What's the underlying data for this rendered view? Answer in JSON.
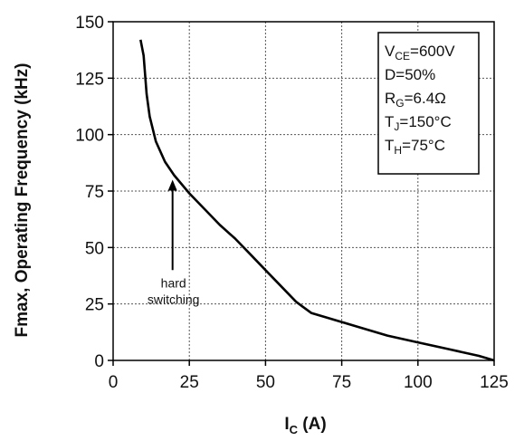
{
  "chart_data": {
    "type": "line",
    "xlabel": {
      "main": "I",
      "sub": "C",
      "rest": " (A)"
    },
    "ylabel": "Fmax, Operating Frequency (kHz)",
    "xlim": [
      0,
      125
    ],
    "ylim": [
      0,
      150
    ],
    "x_ticks": [
      "0",
      "25",
      "50",
      "75",
      "100",
      "125"
    ],
    "y_ticks": [
      "0",
      "25",
      "50",
      "75",
      "100",
      "125",
      "150"
    ],
    "grid": true,
    "series": [
      {
        "x": [
          9,
          10,
          11,
          12,
          14,
          17,
          20,
          25,
          30,
          35,
          40,
          45,
          50,
          55,
          60,
          62,
          65,
          70,
          75,
          80,
          90,
          100,
          110,
          120,
          125
        ],
        "y": [
          142,
          135,
          118,
          108,
          97,
          88,
          82,
          74,
          67,
          60,
          54,
          47,
          40,
          33,
          26,
          24,
          21,
          19,
          17,
          15,
          11,
          8,
          5,
          2,
          0
        ]
      }
    ],
    "annotation": {
      "line1": "hard",
      "line2": "switching",
      "arrow_x": 19.5,
      "arrow_from_y": 40,
      "arrow_to_y": 80
    },
    "conditions": [
      {
        "main": "V",
        "sub": "CE",
        "rest": "=600V"
      },
      {
        "main": "D=50%",
        "sub": "",
        "rest": ""
      },
      {
        "main": "R",
        "sub": "G",
        "rest": "=6.4Ω"
      },
      {
        "main": "T",
        "sub": "J",
        "rest": "=150°C"
      },
      {
        "main": "T",
        "sub": "H",
        "rest": "=75°C"
      }
    ]
  }
}
